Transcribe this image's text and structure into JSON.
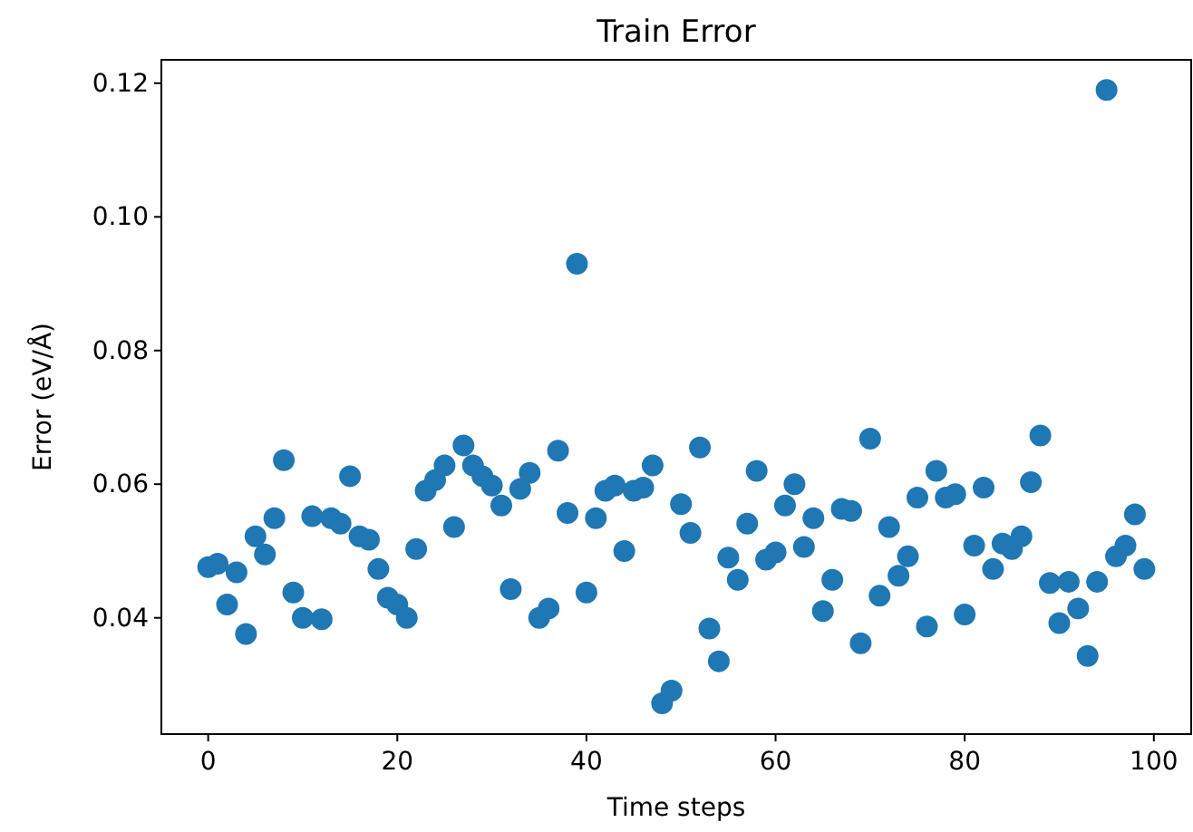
{
  "chart_data": {
    "type": "scatter",
    "title": "Train Error",
    "xlabel": "Time steps",
    "ylabel": "Error (eV/Å)",
    "x": [
      0,
      1,
      2,
      3,
      4,
      5,
      6,
      7,
      8,
      9,
      10,
      11,
      12,
      13,
      14,
      15,
      16,
      17,
      18,
      19,
      20,
      21,
      22,
      23,
      24,
      25,
      26,
      27,
      28,
      29,
      30,
      31,
      32,
      33,
      34,
      35,
      36,
      37,
      38,
      39,
      40,
      41,
      42,
      43,
      44,
      45,
      46,
      47,
      48,
      49,
      50,
      51,
      52,
      53,
      54,
      55,
      56,
      57,
      58,
      59,
      60,
      61,
      62,
      63,
      64,
      65,
      66,
      67,
      68,
      69,
      70,
      71,
      72,
      73,
      74,
      75,
      76,
      77,
      78,
      79,
      80,
      81,
      82,
      83,
      84,
      85,
      86,
      87,
      88,
      89,
      90,
      91,
      92,
      93,
      94,
      95,
      96,
      97,
      98,
      99
    ],
    "series": [
      {
        "color": "#1f77b4",
        "values": [
          0.0476,
          0.0481,
          0.042,
          0.0468,
          0.0376,
          0.0522,
          0.0495,
          0.0549,
          0.0636,
          0.0438,
          0.04,
          0.0552,
          0.0398,
          0.0549,
          0.0541,
          0.0612,
          0.0522,
          0.0517,
          0.0473,
          0.043,
          0.042,
          0.04,
          0.0503,
          0.059,
          0.0606,
          0.0628,
          0.0536,
          0.0658,
          0.0628,
          0.0612,
          0.0598,
          0.0568,
          0.0443,
          0.0593,
          0.0617,
          0.04,
          0.0414,
          0.065,
          0.0557,
          0.093,
          0.0438,
          0.0549,
          0.059,
          0.0598,
          0.05,
          0.059,
          0.0595,
          0.0628,
          0.0272,
          0.0291,
          0.057,
          0.0527,
          0.0655,
          0.0384,
          0.0335,
          0.049,
          0.0457,
          0.0541,
          0.062,
          0.0487,
          0.0498,
          0.0568,
          0.06,
          0.0506,
          0.0549,
          0.041,
          0.0457,
          0.0563,
          0.056,
          0.0362,
          0.0668,
          0.0433,
          0.0536,
          0.0463,
          0.0492,
          0.058,
          0.0387,
          0.062,
          0.058,
          0.0585,
          0.0405,
          0.0508,
          0.0595,
          0.0473,
          0.0511,
          0.0503,
          0.0522,
          0.0603,
          0.0673,
          0.0452,
          0.0392,
          0.0454,
          0.0414,
          0.0343,
          0.0454,
          0.119,
          0.0492,
          0.0508,
          0.0555,
          0.0473
        ]
      }
    ],
    "xlim": [
      -4.95,
      103.95
    ],
    "xticks": [
      0,
      20,
      40,
      60,
      80,
      100
    ],
    "ylim": [
      0.0226,
      0.1235
    ],
    "yticks": [
      {
        "value": 0.04,
        "label": "0.04"
      },
      {
        "value": 0.06,
        "label": "0.06"
      },
      {
        "value": 0.08,
        "label": "0.08"
      },
      {
        "value": 0.1,
        "label": "0.10"
      },
      {
        "value": 0.12,
        "label": "0.12"
      }
    ],
    "marker": "circle"
  }
}
